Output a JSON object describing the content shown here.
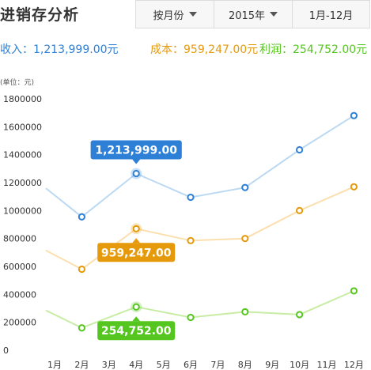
{
  "page": {
    "title": "进销存分析"
  },
  "filters": {
    "group_by": "按月份",
    "year": "2015年",
    "range": "1月-12月"
  },
  "summary": {
    "income": "收入：1,213,999.00元",
    "cost": "成本：959,247.00元",
    "profit": "利润：254,752.00元"
  },
  "unit_label": "(单位：元)",
  "colors": {
    "income": "#2e7fd6",
    "cost": "#e59a0c",
    "profit": "#55c51f",
    "income_line": "#bcd9f2",
    "cost_line": "#fbdfae",
    "profit_line": "#c9eca5"
  },
  "chart_data": {
    "type": "line",
    "categories": [
      "1月",
      "2月",
      "3月",
      "4月",
      "5月",
      "6月",
      "7月",
      "8月",
      "9月",
      "10月",
      "11月",
      "12月"
    ],
    "y_ticks": [
      "0",
      "200000",
      "400000",
      "600000",
      "800000",
      "1000000",
      "1200000",
      "1400000",
      "1600000",
      "1800000"
    ],
    "ylim": [
      0,
      1800000
    ],
    "series": [
      {
        "key": "income",
        "x": [
          0.05,
          2,
          4,
          6,
          8,
          10,
          12
        ],
        "values": [
          1160000,
          955000,
          1265000,
          1095000,
          1165000,
          1435000,
          1680000
        ],
        "marker_months": [
          2,
          4,
          6,
          8,
          10,
          12
        ]
      },
      {
        "key": "cost",
        "x": [
          0.05,
          2,
          4,
          6,
          8,
          10,
          12
        ],
        "values": [
          715000,
          580000,
          870000,
          785000,
          800000,
          1000000,
          1170000
        ],
        "marker_months": [
          2,
          4,
          6,
          8,
          10,
          12
        ]
      },
      {
        "key": "profit",
        "x": [
          0.05,
          2,
          4,
          6,
          8,
          10,
          12
        ],
        "values": [
          285000,
          160000,
          310000,
          235000,
          275000,
          255000,
          425000
        ],
        "marker_months": [
          2,
          4,
          6,
          8,
          10,
          12
        ]
      }
    ],
    "highlight_month": 4,
    "tooltips": [
      {
        "key": "income",
        "text": "1,213,999.00",
        "placement": "above"
      },
      {
        "key": "cost",
        "text": "959,247.00",
        "placement": "below"
      },
      {
        "key": "profit",
        "text": "254,752.00",
        "placement": "below"
      }
    ]
  }
}
